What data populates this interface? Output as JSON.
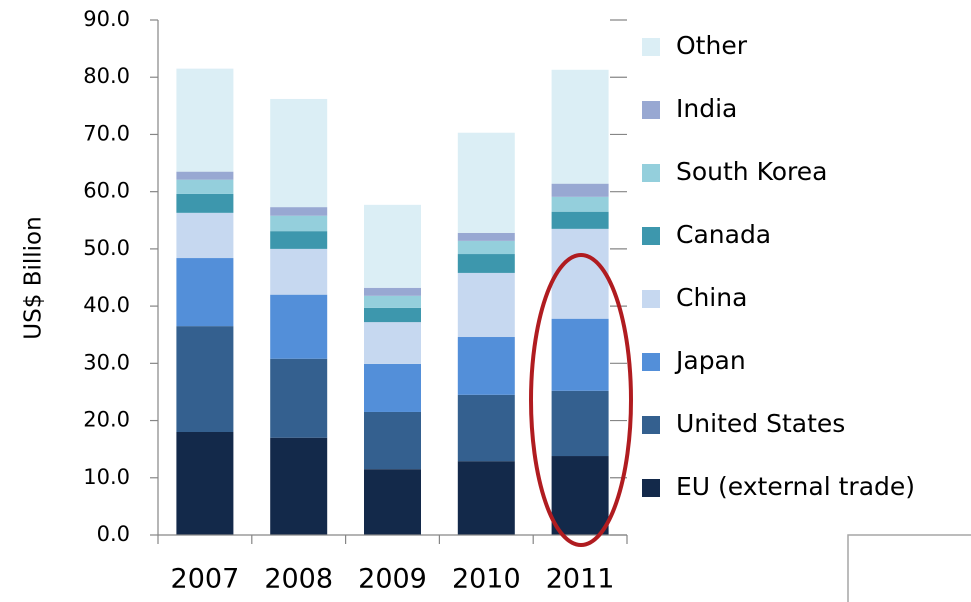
{
  "chart_data": {
    "type": "stacked_bar",
    "y_label": "US$ Billion",
    "categories": [
      "2007",
      "2008",
      "2009",
      "2010",
      "2011"
    ],
    "series": [
      {
        "name": "EU (external trade)",
        "color": "#13294a",
        "values": [
          18.0,
          17.0,
          11.5,
          12.9,
          13.8
        ]
      },
      {
        "name": "United States",
        "color": "#34608f",
        "values": [
          18.5,
          13.8,
          10.0,
          11.6,
          11.4
        ]
      },
      {
        "name": "Japan",
        "color": "#538fd9",
        "values": [
          11.9,
          11.2,
          8.4,
          10.1,
          12.6
        ]
      },
      {
        "name": "China",
        "color": "#c6d8f0",
        "values": [
          7.9,
          8.0,
          7.3,
          11.2,
          15.7
        ]
      },
      {
        "name": "Canada",
        "color": "#3d97ad",
        "values": [
          3.3,
          3.1,
          2.5,
          3.3,
          3.0
        ]
      },
      {
        "name": "South Korea",
        "color": "#94cfdc",
        "values": [
          2.5,
          2.7,
          2.1,
          2.3,
          2.6
        ]
      },
      {
        "name": "India",
        "color": "#98a8d2",
        "values": [
          1.4,
          1.5,
          1.4,
          1.4,
          2.3
        ]
      },
      {
        "name": "Other",
        "color": "#dbeef5",
        "values": [
          18.0,
          18.9,
          14.5,
          17.5,
          19.9
        ]
      }
    ],
    "ylim": [
      0,
      90
    ],
    "yticks": [
      {
        "value": 0,
        "label": "0.0"
      },
      {
        "value": 10,
        "label": "10.0"
      },
      {
        "value": 20,
        "label": "20.0"
      },
      {
        "value": 30,
        "label": "30.0"
      },
      {
        "value": 40,
        "label": "40.0"
      },
      {
        "value": 50,
        "label": "50.0"
      },
      {
        "value": 60,
        "label": "60.0"
      },
      {
        "value": 70,
        "label": "70.0"
      },
      {
        "value": 80,
        "label": "80.0"
      },
      {
        "value": 90,
        "label": "90.0"
      }
    ],
    "grid": false,
    "legend": "right"
  }
}
